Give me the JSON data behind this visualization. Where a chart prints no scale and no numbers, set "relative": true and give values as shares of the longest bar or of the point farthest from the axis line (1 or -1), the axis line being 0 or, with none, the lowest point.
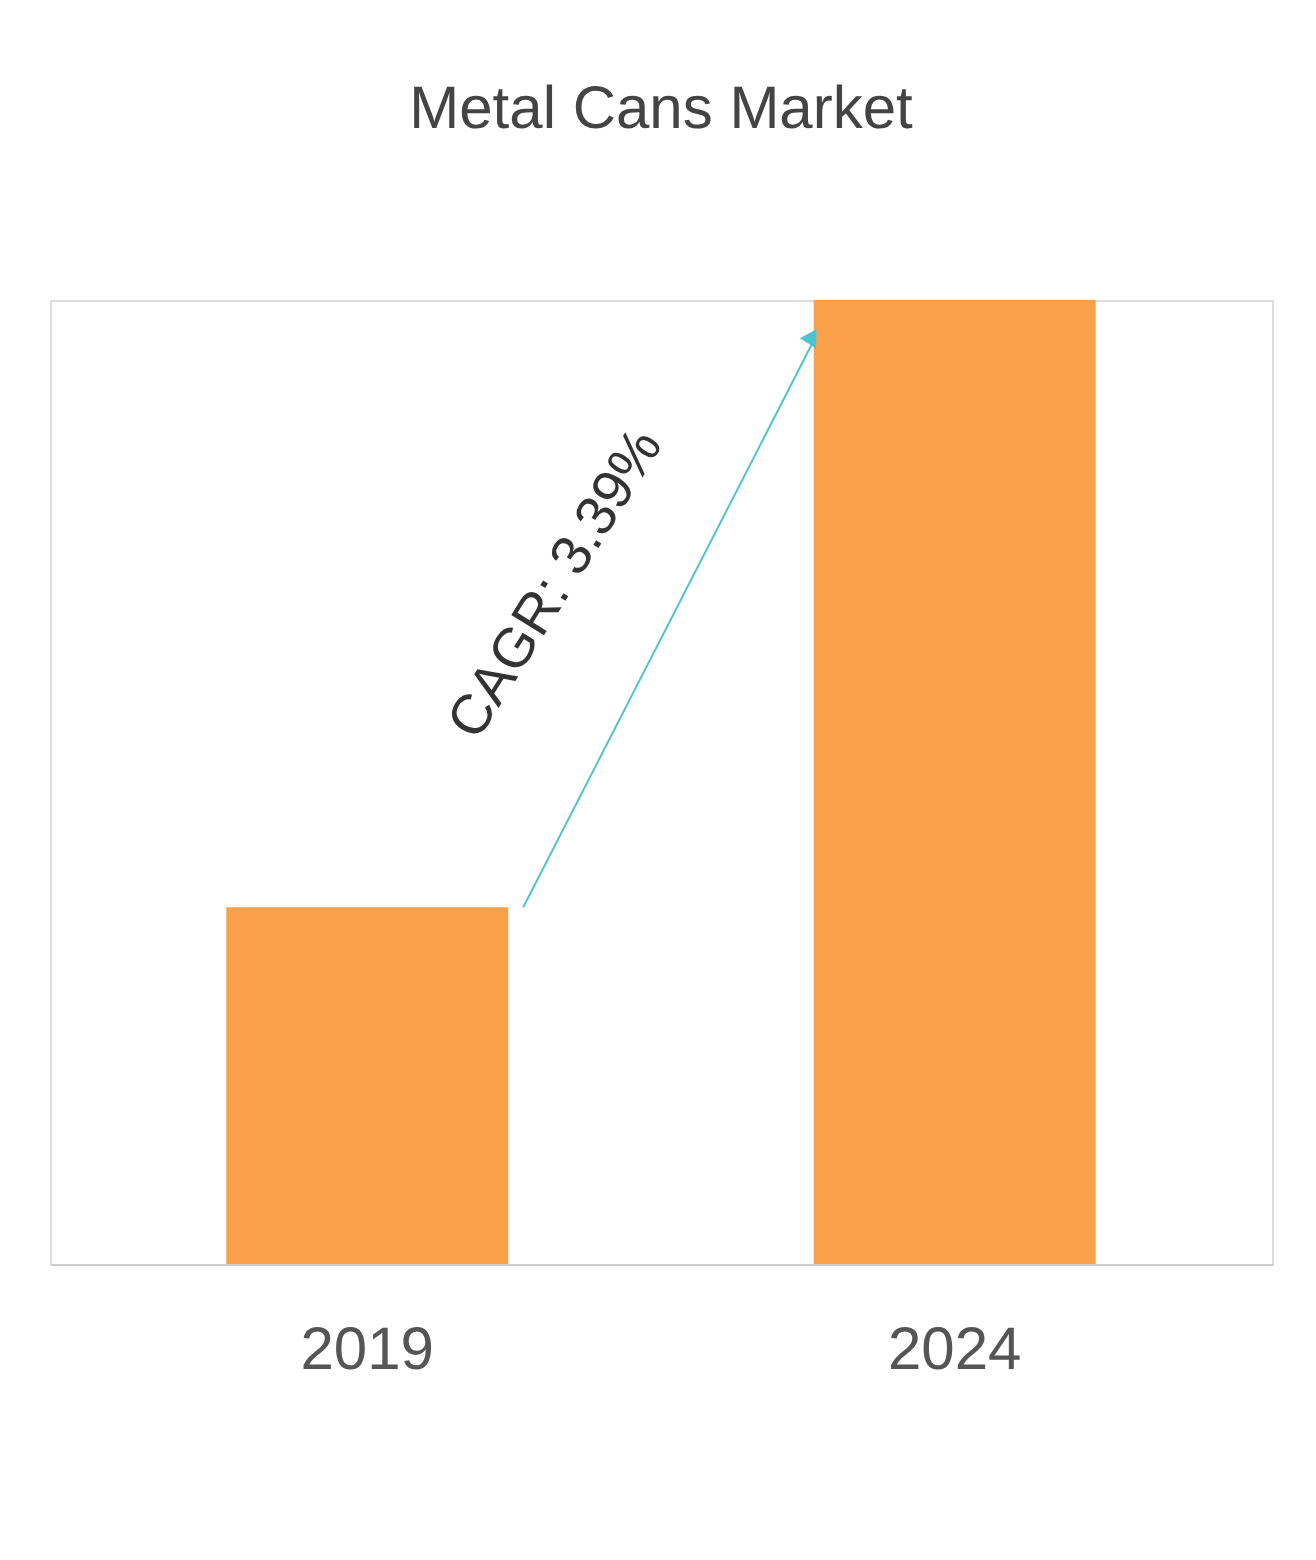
{
  "chart_data": {
    "type": "bar",
    "title": "Metal Cans Market",
    "categories": [
      "2019",
      "2024"
    ],
    "values": [
      0.37,
      1
    ],
    "color": "#fba04a",
    "relative": true,
    "grid": false,
    "annotations": [
      "CAGR: 3.39%"
    ]
  }
}
